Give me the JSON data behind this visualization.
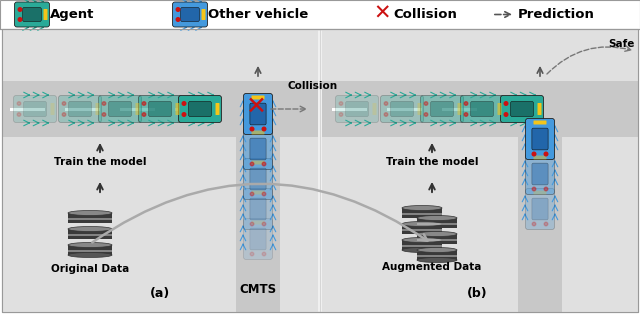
{
  "agent_body": "#2aaa98",
  "agent_roof": "#1a7068",
  "other_body": "#4499dd",
  "other_roof": "#2266aa",
  "yellow": "#f5c518",
  "red": "#cc1111",
  "road_gray": "#c8c8c8",
  "sidewalk_gray": "#e8e8e8",
  "white": "#ffffff",
  "db_dark": "#3a3a3a",
  "db_mid": "#555555",
  "db_light": "#888888",
  "arrow_gray": "#777777",
  "text_black": "#000000",
  "legend_bg": "#ffffff",
  "panel_bg": "#f4f4f4",
  "legend_items": [
    "Agent",
    "Other vehicle",
    "Collision",
    "Prediction"
  ],
  "labels": {
    "train_a": "Train the model",
    "orig": "Original Data",
    "cmts": "CMTS",
    "collision": "Collision",
    "train_b": "Train the model",
    "aug": "Augmented Data",
    "safe": "Safe",
    "sub_a": "(a)",
    "sub_b": "(b)"
  }
}
